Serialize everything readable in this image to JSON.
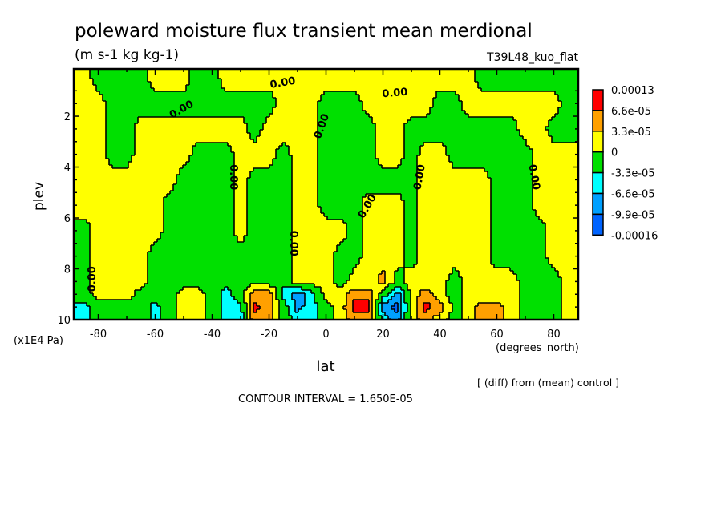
{
  "chart_data": {
    "type": "heatmap",
    "style": "filled-contour",
    "title": "poleward moisture flux transient mean merdional",
    "subtitle": "(m s-1 kg kg-1)",
    "run_label": "T39L48_kuo_flat",
    "xlabel": "lat",
    "xunits": "(degrees_north)",
    "ylabel": "plev",
    "yunits": "(x1E4 Pa)",
    "xlim": [
      -88.6,
      88.6
    ],
    "ylim": [
      0.14,
      10
    ],
    "y_inverted": true,
    "xticks": [
      -80,
      -60,
      -40,
      -20,
      0,
      20,
      40,
      60,
      80
    ],
    "xtick_labels": [
      "-80",
      "-60",
      "-40",
      "-20",
      "0",
      "20",
      "40",
      "60",
      "80"
    ],
    "yticks": [
      2,
      4,
      6,
      8,
      10
    ],
    "ytick_labels": [
      "2",
      "4",
      "6",
      "8",
      "10"
    ],
    "comparison_note": "[ (diff) from (mean) control ]",
    "contour_interval_text": "CONTOUR INTERVAL = 1.650E-05",
    "colorbar": {
      "placement": "right",
      "labels": [
        "0.00013",
        "6.6e-05",
        "3.3e-05",
        "0",
        "-3.3e-05",
        "-6.6e-05",
        "-9.9e-05",
        "-0.00016"
      ],
      "thresholds": [
        -9.9e-05,
        -6.6e-05,
        -3.3e-05,
        0,
        3.3e-05,
        6.6e-05
      ],
      "colors_low_to_high": [
        "#0064ff",
        "#00a0ff",
        "#00ffff",
        "#00e000",
        "#ffff00",
        "#ffa000",
        "#ff0000"
      ]
    },
    "contour_labels": [
      {
        "text": "0.00",
        "lat": -15.2,
        "plev": 0.7
      },
      {
        "text": "0.00",
        "lat": -50.7,
        "plev": 1.75
      },
      {
        "text": "0.00",
        "lat": 24.2,
        "plev": 1.1
      },
      {
        "text": "0.00",
        "lat": -1.4,
        "plev": 2.4
      },
      {
        "text": "0.00",
        "lat": -32.7,
        "plev": 4.4
      },
      {
        "text": "0.00",
        "lat": 14.6,
        "plev": 5.55
      },
      {
        "text": "0.00",
        "lat": -11.5,
        "plev": 7.0
      },
      {
        "text": "0.00",
        "lat": 33,
        "plev": 4.4
      },
      {
        "text": "0.00",
        "lat": 73,
        "plev": 4.4
      },
      {
        "text": "0.00",
        "lat": -82,
        "plev": 8.4
      }
    ],
    "lat": [
      -85,
      -80,
      -75,
      -70,
      -65,
      -60,
      -55,
      -50,
      -45,
      -40,
      -35,
      -30,
      -25,
      -20,
      -15,
      -10,
      -5,
      0,
      5,
      10,
      15,
      20,
      25,
      30,
      35,
      40,
      45,
      50,
      55,
      60,
      65,
      70,
      75,
      80,
      85
    ],
    "plev": [
      0.5,
      1.5,
      2.5,
      3.5,
      4.5,
      5.5,
      6.5,
      7.5,
      8.5,
      9.0,
      9.5,
      10
    ],
    "values": [
      [
        1.2e-05,
        -1.2e-05,
        -1.2e-05,
        -1.2e-05,
        -1.2e-05,
        1.2e-05,
        1.2e-05,
        1.2e-05,
        -1.2e-05,
        -1.2e-05,
        1.2e-05,
        1.2e-05,
        1.2e-05,
        1.2e-05,
        1.2e-05,
        1.2e-05,
        1.2e-05,
        1.2e-05,
        1.2e-05,
        1.2e-05,
        1.2e-05,
        1.2e-05,
        1.2e-05,
        1.2e-05,
        1.2e-05,
        1.2e-05,
        1.2e-05,
        1.2e-05,
        -1.2e-05,
        -1.2e-05,
        -1.2e-05,
        -1.2e-05,
        -1.2e-05,
        -1.2e-05,
        -1.2e-05
      ],
      [
        1.2e-05,
        1.2e-05,
        -1.2e-05,
        -1.2e-05,
        -1.2e-05,
        -1.2e-05,
        -1.2e-05,
        -1.2e-05,
        -1.2e-05,
        -1.2e-05,
        -1.2e-05,
        -1.2e-05,
        -1.2e-05,
        -1.2e-05,
        1.2e-05,
        1.2e-05,
        1.2e-05,
        -1.2e-05,
        -1.2e-05,
        -1.2e-05,
        1.2e-05,
        1.2e-05,
        1.2e-05,
        1.2e-05,
        1.2e-05,
        -1.2e-05,
        -1.2e-05,
        1.2e-05,
        1.2e-05,
        1.2e-05,
        1.2e-05,
        1.2e-05,
        1.2e-05,
        1.2e-05,
        -1.2e-05
      ],
      [
        1.2e-05,
        1.2e-05,
        -1.2e-05,
        -1.2e-05,
        1.2e-05,
        1.2e-05,
        1.2e-05,
        1.2e-05,
        1.2e-05,
        1.2e-05,
        1.2e-05,
        1.2e-05,
        -1.2e-05,
        1.2e-05,
        1.2e-05,
        1.2e-05,
        1.2e-05,
        -1.2e-05,
        -1.2e-05,
        -1.2e-05,
        -1.2e-05,
        1.2e-05,
        1.2e-05,
        -1.2e-05,
        -1.2e-05,
        -1.2e-05,
        -1.2e-05,
        -1.2e-05,
        -1.2e-05,
        -1.2e-05,
        -1.2e-05,
        1.2e-05,
        1.2e-05,
        -1.2e-05,
        -1.2e-05
      ],
      [
        1.2e-05,
        1.2e-05,
        -1.2e-05,
        -1.2e-05,
        1.2e-05,
        1.2e-05,
        1.2e-05,
        1.2e-05,
        -1.2e-05,
        -1.2e-05,
        -1.2e-05,
        1.2e-05,
        1.2e-05,
        1.2e-05,
        -1.2e-05,
        1.2e-05,
        1.2e-05,
        -1.2e-05,
        -1.2e-05,
        -1.2e-05,
        -1.2e-05,
        1.2e-05,
        1.2e-05,
        -1.2e-05,
        1.2e-05,
        1.2e-05,
        -1.2e-05,
        -1.2e-05,
        -1.2e-05,
        -1.2e-05,
        -1.2e-05,
        -1.2e-05,
        1.2e-05,
        1.2e-05,
        1.2e-05
      ],
      [
        1.2e-05,
        1.2e-05,
        1.2e-05,
        1.2e-05,
        1.2e-05,
        1.2e-05,
        1.2e-05,
        -1.2e-05,
        -1.2e-05,
        -1.2e-05,
        -1.2e-05,
        1.2e-05,
        -1.2e-05,
        -1.2e-05,
        -1.2e-05,
        1.2e-05,
        1.2e-05,
        -1.2e-05,
        -1.2e-05,
        -1.2e-05,
        -1.2e-05,
        -1.2e-05,
        -1.2e-05,
        -1.2e-05,
        1.2e-05,
        1.2e-05,
        1.2e-05,
        1.2e-05,
        1.2e-05,
        -1.2e-05,
        -1.2e-05,
        -1.2e-05,
        1.2e-05,
        1.2e-05,
        1.2e-05
      ],
      [
        1.2e-05,
        1.2e-05,
        1.2e-05,
        1.2e-05,
        1.2e-05,
        1.2e-05,
        -1.2e-05,
        -1.2e-05,
        -1.2e-05,
        -1.2e-05,
        -1.2e-05,
        1.2e-05,
        -1.2e-05,
        -1.2e-05,
        -1.2e-05,
        1.2e-05,
        1.2e-05,
        -1.2e-05,
        -1.2e-05,
        -1.2e-05,
        1.2e-05,
        1.2e-05,
        1.2e-05,
        -1.2e-05,
        1.2e-05,
        1.2e-05,
        1.2e-05,
        1.2e-05,
        1.2e-05,
        -1.2e-05,
        -1.2e-05,
        -1.2e-05,
        1.2e-05,
        1.2e-05,
        1.2e-05
      ],
      [
        -1.2e-05,
        1.2e-05,
        1.2e-05,
        1.2e-05,
        1.2e-05,
        1.2e-05,
        -1.2e-05,
        -1.2e-05,
        -1.2e-05,
        -1.2e-05,
        -1.2e-05,
        1.2e-05,
        -1.2e-05,
        -1.2e-05,
        -1.2e-05,
        1.2e-05,
        1.2e-05,
        1.2e-05,
        1.2e-05,
        -1.2e-05,
        1.2e-05,
        1.2e-05,
        1.2e-05,
        -1.2e-05,
        1.2e-05,
        1.2e-05,
        1.2e-05,
        1.2e-05,
        1.2e-05,
        -1.2e-05,
        -1.2e-05,
        -1.2e-05,
        -1.2e-05,
        1.2e-05,
        1.2e-05
      ],
      [
        -1.2e-05,
        1.2e-05,
        1.2e-05,
        1.2e-05,
        1.2e-05,
        -1.2e-05,
        -1.2e-05,
        -1.2e-05,
        -1.2e-05,
        -1.2e-05,
        -1.2e-05,
        -1.2e-05,
        -1.5e-05,
        -2e-05,
        -1.5e-05,
        1.2e-05,
        1.2e-05,
        1.2e-05,
        -1.2e-05,
        -1.2e-05,
        1.2e-05,
        2e-05,
        1.2e-05,
        -1.2e-05,
        1.2e-05,
        1.2e-05,
        1.2e-05,
        1.2e-05,
        1.2e-05,
        -1.2e-05,
        -1.2e-05,
        -1.2e-05,
        -1.2e-05,
        1.2e-05,
        1.2e-05
      ],
      [
        -1.2e-05,
        1.2e-05,
        1.2e-05,
        1.2e-05,
        1.2e-05,
        -1.2e-05,
        -1.2e-05,
        -1.2e-05,
        -1.2e-05,
        -1.2e-05,
        -2e-05,
        -1.5e-05,
        -1.2e-05,
        -1.5e-05,
        -2e-05,
        1.2e-05,
        1.2e-05,
        1.2e-05,
        -1.2e-05,
        1.2e-05,
        1.2e-05,
        4.5e-05,
        -1.2e-05,
        1.2e-05,
        1.2e-05,
        1.2e-05,
        -1.2e-05,
        1.2e-05,
        1.2e-05,
        1.2e-05,
        1.2e-05,
        -1.2e-05,
        -1.2e-05,
        -1.2e-05,
        1.2e-05
      ],
      [
        -1.2e-05,
        1.2e-05,
        1.2e-05,
        1.2e-05,
        -1.2e-05,
        -1.2e-05,
        -1.2e-05,
        1.2e-05,
        1.2e-05,
        -1.2e-05,
        -4.5e-05,
        -1.2e-05,
        5e-05,
        5e-05,
        -4.5e-05,
        -8e-05,
        -4.5e-05,
        1.2e-05,
        1.2e-05,
        5e-05,
        5e-05,
        -1.2e-05,
        -8e-05,
        1.2e-05,
        5e-05,
        1.2e-05,
        -1.2e-05,
        1.2e-05,
        1.2e-05,
        1.2e-05,
        1.2e-05,
        -1.2e-05,
        -1.2e-05,
        -1.2e-05,
        1.2e-05
      ],
      [
        -4.5e-05,
        -1.2e-05,
        -1.2e-05,
        -1.2e-05,
        -1.2e-05,
        -4.5e-05,
        -1.2e-05,
        1.2e-05,
        1.2e-05,
        -1.2e-05,
        -4.5e-05,
        -4.5e-05,
        7.5e-05,
        5e-05,
        -1.2e-05,
        -8e-05,
        -4.5e-05,
        -1.2e-05,
        1.2e-05,
        8e-05,
        8e-05,
        -8e-05,
        -0.000115,
        1.2e-05,
        8e-05,
        5e-05,
        -1.2e-05,
        1.2e-05,
        5e-05,
        5e-05,
        1.2e-05,
        -1.2e-05,
        -1.2e-05,
        -1.2e-05,
        1.2e-05
      ],
      [
        -4.5e-05,
        -1.2e-05,
        -1.2e-05,
        -1.2e-05,
        -1.2e-05,
        -4.5e-05,
        -1.2e-05,
        1.2e-05,
        1.2e-05,
        -1.2e-05,
        -4.5e-05,
        -4.5e-05,
        5e-05,
        5e-05,
        -1.2e-05,
        -4.5e-05,
        -4.5e-05,
        -1.2e-05,
        1.2e-05,
        5e-05,
        5e-05,
        -4.5e-05,
        -8e-05,
        1.2e-05,
        5e-05,
        1.2e-05,
        -1.2e-05,
        1.2e-05,
        5e-05,
        5e-05,
        1.2e-05,
        -1.2e-05,
        -1.2e-05,
        -1.2e-05,
        1.2e-05
      ]
    ]
  }
}
